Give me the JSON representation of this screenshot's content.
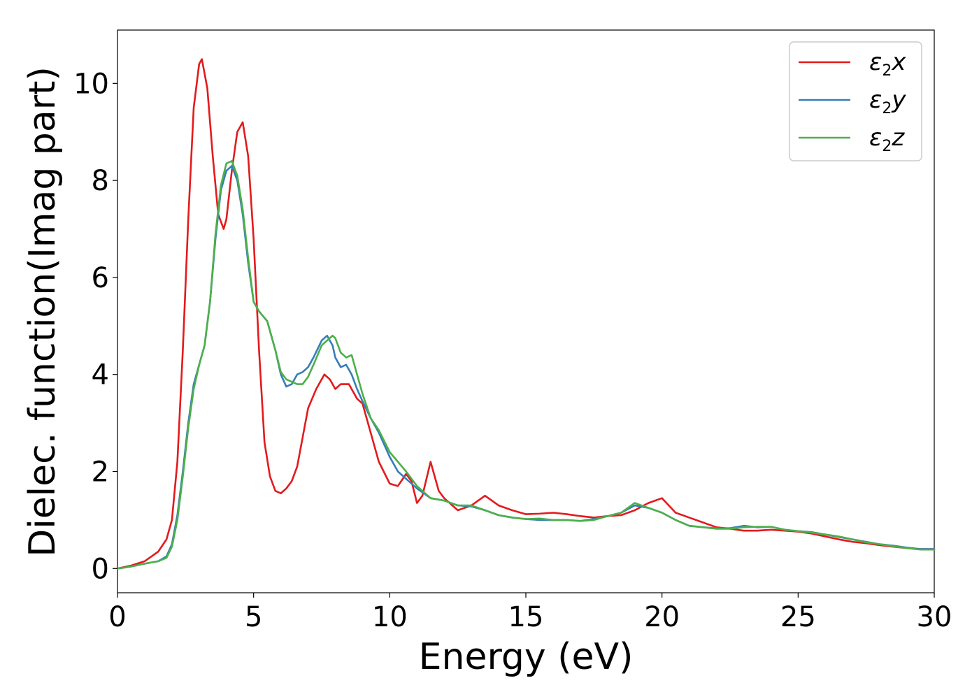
{
  "chart_data": {
    "type": "line",
    "xlabel": "Energy (eV)",
    "ylabel": "Dielec. function(Imag part)",
    "xlim": [
      0,
      30
    ],
    "ylim": [
      -0.5,
      11.1
    ],
    "xticks": [
      0,
      5,
      10,
      15,
      20,
      25,
      30
    ],
    "yticks": [
      0,
      2,
      4,
      6,
      8,
      10
    ],
    "grid": false,
    "legend_position": "top-right",
    "series": [
      {
        "name": "ε₂x",
        "legend_base": "ε",
        "legend_sub": "2",
        "legend_var": "x",
        "color": "#e41a1c",
        "x": [
          0,
          0.5,
          1.0,
          1.5,
          1.8,
          2.0,
          2.2,
          2.4,
          2.6,
          2.8,
          3.0,
          3.1,
          3.3,
          3.5,
          3.7,
          3.9,
          4.0,
          4.2,
          4.4,
          4.6,
          4.8,
          5.0,
          5.2,
          5.4,
          5.6,
          5.8,
          6.0,
          6.2,
          6.4,
          6.6,
          6.8,
          7.0,
          7.3,
          7.6,
          7.8,
          8.0,
          8.2,
          8.5,
          8.8,
          9.0,
          9.3,
          9.6,
          10.0,
          10.3,
          10.6,
          10.8,
          11.0,
          11.2,
          11.5,
          11.8,
          12.0,
          12.5,
          13.0,
          13.5,
          14.0,
          14.5,
          15.0,
          15.5,
          16.0,
          16.5,
          17.0,
          17.5,
          18.0,
          18.5,
          19.0,
          19.5,
          20.0,
          20.5,
          21.0,
          21.5,
          22.0,
          22.5,
          23.0,
          23.5,
          24.0,
          24.5,
          25.0,
          25.5,
          26.0,
          26.5,
          27.0,
          27.5,
          28.0,
          28.5,
          29.0,
          29.5,
          30.0
        ],
        "y": [
          0,
          0.06,
          0.15,
          0.35,
          0.6,
          1.0,
          2.2,
          4.5,
          7.2,
          9.5,
          10.4,
          10.5,
          9.9,
          8.5,
          7.3,
          7.0,
          7.2,
          8.2,
          9.0,
          9.2,
          8.5,
          6.8,
          4.5,
          2.6,
          1.9,
          1.6,
          1.55,
          1.65,
          1.8,
          2.1,
          2.7,
          3.3,
          3.7,
          4.0,
          3.9,
          3.7,
          3.8,
          3.8,
          3.5,
          3.4,
          2.8,
          2.2,
          1.75,
          1.7,
          1.95,
          1.8,
          1.35,
          1.5,
          2.2,
          1.6,
          1.45,
          1.2,
          1.3,
          1.5,
          1.3,
          1.2,
          1.12,
          1.13,
          1.15,
          1.12,
          1.08,
          1.05,
          1.08,
          1.1,
          1.2,
          1.35,
          1.45,
          1.15,
          1.05,
          0.95,
          0.85,
          0.82,
          0.78,
          0.78,
          0.8,
          0.78,
          0.76,
          0.72,
          0.66,
          0.6,
          0.55,
          0.52,
          0.48,
          0.45,
          0.42,
          0.4,
          0.4
        ]
      },
      {
        "name": "ε₂y",
        "legend_base": "ε",
        "legend_sub": "2",
        "legend_var": "y",
        "color": "#377eb8",
        "x": [
          0,
          0.5,
          1.0,
          1.5,
          1.8,
          2.0,
          2.2,
          2.4,
          2.6,
          2.8,
          3.0,
          3.2,
          3.4,
          3.6,
          3.8,
          4.0,
          4.2,
          4.4,
          4.6,
          4.8,
          5.0,
          5.2,
          5.5,
          5.8,
          6.0,
          6.2,
          6.4,
          6.6,
          6.8,
          7.0,
          7.2,
          7.5,
          7.7,
          7.9,
          8.0,
          8.2,
          8.4,
          8.6,
          8.8,
          9.0,
          9.3,
          9.6,
          10.0,
          10.3,
          10.6,
          11.0,
          11.5,
          12.0,
          12.5,
          13.0,
          13.5,
          14.0,
          14.5,
          15.0,
          15.5,
          16.0,
          16.5,
          17.0,
          17.5,
          18.0,
          18.5,
          19.0,
          19.5,
          20.0,
          20.5,
          21.0,
          21.5,
          22.0,
          22.5,
          23.0,
          23.5,
          24.0,
          24.5,
          25.0,
          25.5,
          26.0,
          26.5,
          27.0,
          27.5,
          28.0,
          28.5,
          29.0,
          29.5,
          30.0
        ],
        "y": [
          0,
          0.04,
          0.1,
          0.15,
          0.25,
          0.5,
          1.1,
          2.0,
          3.0,
          3.8,
          4.2,
          4.6,
          5.5,
          6.8,
          7.8,
          8.2,
          8.3,
          8.0,
          7.3,
          6.3,
          5.5,
          5.3,
          5.1,
          4.5,
          4.0,
          3.75,
          3.8,
          4.0,
          4.05,
          4.15,
          4.35,
          4.7,
          4.8,
          4.6,
          4.35,
          4.15,
          4.2,
          4.0,
          3.7,
          3.45,
          3.1,
          2.8,
          2.3,
          2.0,
          1.85,
          1.65,
          1.45,
          1.4,
          1.3,
          1.28,
          1.2,
          1.1,
          1.05,
          1.02,
          1.0,
          1.0,
          1.0,
          0.98,
          1.02,
          1.08,
          1.15,
          1.3,
          1.25,
          1.15,
          1.0,
          0.88,
          0.85,
          0.83,
          0.83,
          0.88,
          0.85,
          0.86,
          0.8,
          0.77,
          0.75,
          0.7,
          0.65,
          0.6,
          0.55,
          0.5,
          0.47,
          0.43,
          0.4,
          0.4
        ]
      },
      {
        "name": "ε₂z",
        "legend_base": "ε",
        "legend_sub": "2",
        "legend_var": "z",
        "color": "#4daf4a",
        "x": [
          0,
          0.5,
          1.0,
          1.5,
          1.8,
          2.0,
          2.2,
          2.4,
          2.6,
          2.8,
          3.0,
          3.2,
          3.4,
          3.6,
          3.8,
          4.0,
          4.2,
          4.4,
          4.6,
          4.8,
          5.0,
          5.2,
          5.5,
          5.8,
          6.0,
          6.2,
          6.4,
          6.6,
          6.8,
          7.0,
          7.2,
          7.5,
          7.7,
          7.9,
          8.0,
          8.2,
          8.4,
          8.6,
          8.8,
          9.0,
          9.3,
          9.6,
          10.0,
          10.3,
          10.6,
          11.0,
          11.5,
          12.0,
          12.5,
          13.0,
          13.5,
          14.0,
          14.5,
          15.0,
          15.5,
          16.0,
          16.5,
          17.0,
          17.5,
          18.0,
          18.5,
          19.0,
          19.5,
          20.0,
          20.5,
          21.0,
          21.5,
          22.0,
          22.5,
          23.0,
          23.5,
          24.0,
          24.5,
          25.0,
          25.5,
          26.0,
          26.5,
          27.0,
          27.5,
          28.0,
          28.5,
          29.0,
          29.5,
          30.0
        ],
        "y": [
          0,
          0.04,
          0.1,
          0.15,
          0.22,
          0.45,
          1.0,
          1.9,
          2.9,
          3.7,
          4.2,
          4.6,
          5.5,
          6.9,
          7.9,
          8.35,
          8.4,
          8.1,
          7.4,
          6.4,
          5.5,
          5.3,
          5.1,
          4.5,
          4.05,
          3.9,
          3.85,
          3.8,
          3.8,
          3.95,
          4.2,
          4.6,
          4.7,
          4.8,
          4.75,
          4.45,
          4.35,
          4.4,
          4.0,
          3.6,
          3.1,
          2.85,
          2.4,
          2.2,
          2.0,
          1.7,
          1.45,
          1.4,
          1.3,
          1.3,
          1.2,
          1.1,
          1.05,
          1.02,
          1.03,
          1.0,
          1.0,
          0.98,
          1.0,
          1.08,
          1.15,
          1.35,
          1.25,
          1.15,
          1.0,
          0.88,
          0.85,
          0.82,
          0.82,
          0.85,
          0.86,
          0.86,
          0.8,
          0.77,
          0.74,
          0.7,
          0.66,
          0.6,
          0.54,
          0.5,
          0.46,
          0.42,
          0.39,
          0.39
        ]
      }
    ]
  }
}
